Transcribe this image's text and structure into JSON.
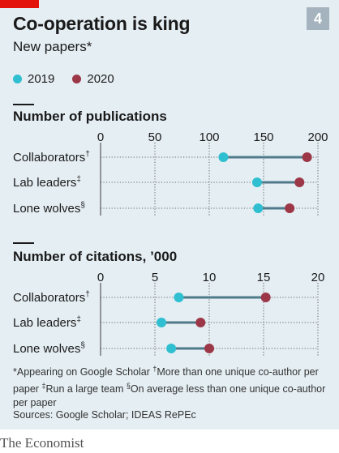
{
  "header": {
    "badge": "4",
    "title": "Co-operation is king",
    "subtitle": "New papers*"
  },
  "legend": {
    "items": [
      {
        "label": "2019",
        "color": "#2fbfd0"
      },
      {
        "label": "2020",
        "color": "#9c3747"
      }
    ]
  },
  "chart_data": [
    {
      "type": "dumbbell",
      "title": "Number of publications",
      "categories": [
        "Collaborators†",
        "Lab leaders‡",
        "Lone wolves§"
      ],
      "ticks": [
        0,
        50,
        100,
        150,
        200
      ],
      "xlim": [
        0,
        200
      ],
      "series": [
        {
          "name": "2019",
          "values": [
            113,
            144,
            145
          ]
        },
        {
          "name": "2020",
          "values": [
            190,
            183,
            174
          ]
        }
      ]
    },
    {
      "type": "dumbbell",
      "title": "Number of citations, ’000",
      "categories": [
        "Collaborators†",
        "Lab leaders‡",
        "Lone wolves§"
      ],
      "ticks": [
        0,
        5,
        10,
        15,
        20
      ],
      "xlim": [
        0,
        20
      ],
      "series": [
        {
          "name": "2019",
          "values": [
            7.2,
            5.6,
            6.5
          ]
        },
        {
          "name": "2020",
          "values": [
            15.2,
            9.2,
            10.0
          ]
        }
      ]
    }
  ],
  "footnote": {
    "line1": "*Appearing on Google Scholar ",
    "dagger_mark": "†",
    "dagger_text": "More than one unique co-author per paper ",
    "ddagger_mark": "‡",
    "ddagger_text": "Run a large team ",
    "section_mark": "§",
    "section_text": "On average less than one unique co-author per paper"
  },
  "sources": "Sources: Google Scholar; IDEAS RePEc",
  "brand": "The Economist",
  "colors": {
    "line": "#4f7a8a",
    "grid": "#3a3a3a",
    "dot2019": "#2fbfd0",
    "dot2020": "#9c3747"
  }
}
